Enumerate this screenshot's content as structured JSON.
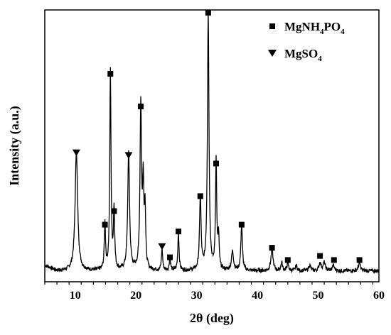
{
  "chart_data": {
    "type": "line",
    "title": "",
    "xlabel": "2θ (deg)",
    "ylabel": "Intensity (a.u.)",
    "xlim": [
      5,
      60
    ],
    "ylim": [
      0,
      100
    ],
    "x_ticks": [
      10,
      20,
      30,
      40,
      50,
      60
    ],
    "x_tick_labels": [
      "10",
      "20",
      "30",
      "40",
      "50",
      "60"
    ],
    "y_ticks_labeled": false,
    "grid": false,
    "legend_position": "top-right",
    "legend": [
      {
        "name": "MgNH4PO4",
        "label_main": "MgNH",
        "label_sub1": "4",
        "label_mid": "PO",
        "label_sub2": "4",
        "marker": "square"
      },
      {
        "name": "MgSO4",
        "label_main": "MgSO",
        "label_sub1": "4",
        "marker": "triangle-down"
      }
    ],
    "series": [
      {
        "name": "XRD pattern",
        "color": "#000000",
        "baseline": 4,
        "peaks": [
          {
            "x": 10.2,
            "y": 44,
            "w": 0.25
          },
          {
            "x": 14.9,
            "y": 17,
            "w": 0.12
          },
          {
            "x": 15.8,
            "y": 73,
            "w": 0.12
          },
          {
            "x": 16.4,
            "y": 22,
            "w": 0.12
          },
          {
            "x": 18.8,
            "y": 43,
            "w": 0.18
          },
          {
            "x": 20.8,
            "y": 61,
            "w": 0.15
          },
          {
            "x": 21.2,
            "y": 30,
            "w": 0.12
          },
          {
            "x": 21.5,
            "y": 22,
            "w": 0.12
          },
          {
            "x": 24.3,
            "y": 8,
            "w": 0.12
          },
          {
            "x": 25.6,
            "y": 5,
            "w": 0.12
          },
          {
            "x": 27.0,
            "y": 14,
            "w": 0.12
          },
          {
            "x": 30.6,
            "y": 27,
            "w": 0.15
          },
          {
            "x": 31.9,
            "y": 95,
            "w": 0.15
          },
          {
            "x": 33.2,
            "y": 40,
            "w": 0.12
          },
          {
            "x": 33.6,
            "y": 12,
            "w": 0.12
          },
          {
            "x": 35.9,
            "y": 7,
            "w": 0.2
          },
          {
            "x": 37.4,
            "y": 17,
            "w": 0.15
          },
          {
            "x": 42.4,
            "y": 8,
            "w": 0.2
          },
          {
            "x": 44.0,
            "y": 3,
            "w": 0.15
          },
          {
            "x": 45.0,
            "y": 3,
            "w": 0.15
          },
          {
            "x": 46.4,
            "y": 2,
            "w": 0.15
          },
          {
            "x": 48.6,
            "y": 2,
            "w": 0.2
          },
          {
            "x": 50.3,
            "y": 3,
            "w": 0.2
          },
          {
            "x": 51.0,
            "y": 3,
            "w": 0.2
          },
          {
            "x": 52.5,
            "y": 2,
            "w": 0.2
          },
          {
            "x": 56.8,
            "y": 3,
            "w": 0.2
          }
        ]
      }
    ],
    "annotations": [
      {
        "x": 10.2,
        "y": 47.5,
        "marker": "triangle-down"
      },
      {
        "x": 14.9,
        "y": 21,
        "marker": "square"
      },
      {
        "x": 15.8,
        "y": 76.5,
        "marker": "square"
      },
      {
        "x": 16.4,
        "y": 26,
        "marker": "square"
      },
      {
        "x": 18.8,
        "y": 46.5,
        "marker": "triangle-down"
      },
      {
        "x": 20.8,
        "y": 64.5,
        "marker": "square"
      },
      {
        "x": 24.3,
        "y": 13,
        "marker": "triangle-down"
      },
      {
        "x": 25.6,
        "y": 9,
        "marker": "square"
      },
      {
        "x": 27.0,
        "y": 18.5,
        "marker": "square"
      },
      {
        "x": 30.6,
        "y": 31.5,
        "marker": "square"
      },
      {
        "x": 31.9,
        "y": 99,
        "marker": "square"
      },
      {
        "x": 33.2,
        "y": 43.5,
        "marker": "square"
      },
      {
        "x": 37.4,
        "y": 21,
        "marker": "square"
      },
      {
        "x": 42.4,
        "y": 12.5,
        "marker": "square"
      },
      {
        "x": 45.0,
        "y": 8,
        "marker": "square"
      },
      {
        "x": 50.3,
        "y": 9.5,
        "marker": "square"
      },
      {
        "x": 52.6,
        "y": 8,
        "marker": "square"
      },
      {
        "x": 56.8,
        "y": 8,
        "marker": "square"
      }
    ]
  }
}
